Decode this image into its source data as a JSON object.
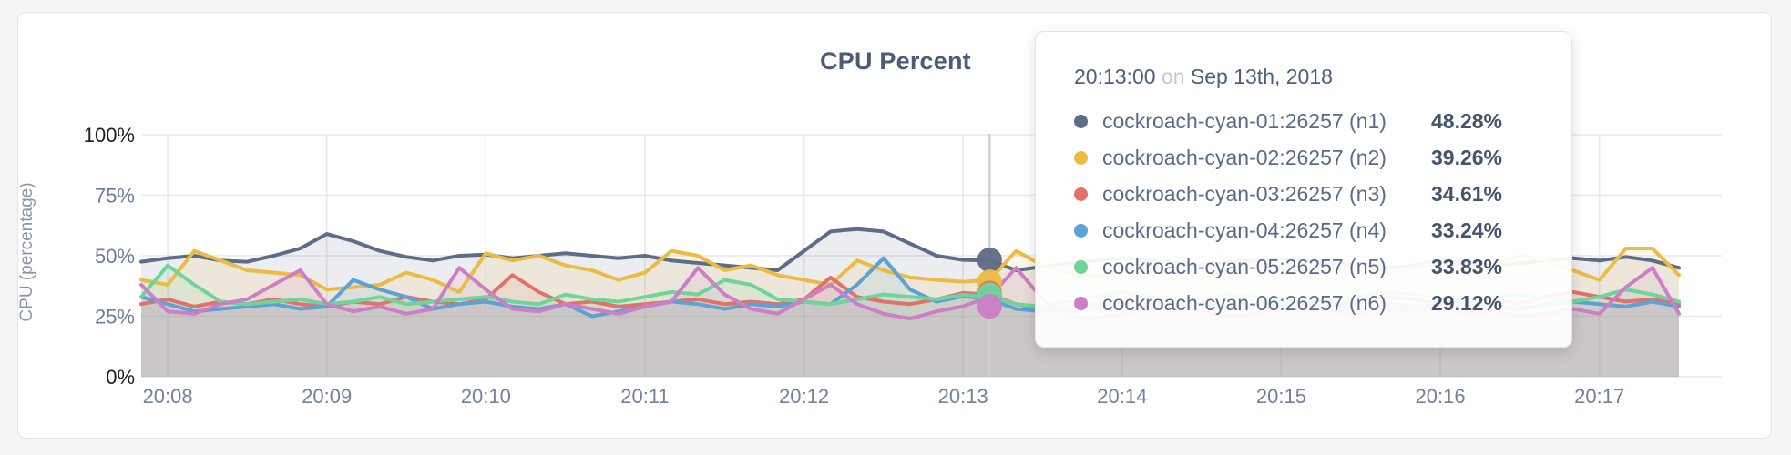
{
  "chart_data": {
    "type": "line",
    "title": "CPU Percent",
    "ylabel": "CPU (percentage)",
    "xlabel": "",
    "ylim": [
      0,
      100
    ],
    "grid": true,
    "legend_position": "none",
    "y_tick_values": [
      0,
      25,
      50,
      75,
      100
    ],
    "y_tick_labels": [
      "0%",
      "25%",
      "50%",
      "75%",
      "100%"
    ],
    "x_tick_labels": [
      "20:08",
      "20:09",
      "20:10",
      "20:11",
      "20:12",
      "20:13",
      "20:14",
      "20:15",
      "20:16",
      "20:17"
    ],
    "x_start_time": "20:07:50",
    "x_end_time": "20:17:30",
    "x_step_seconds": 10,
    "series": [
      {
        "name": "cockroach-cyan-01:26257 (n1)",
        "color": "#5f6c87",
        "values": [
          47.5,
          49,
          50,
          48,
          47.5,
          50,
          53,
          59,
          56,
          52,
          49.5,
          48,
          50,
          50.5,
          49,
          50,
          51,
          50,
          49,
          50,
          48,
          47,
          46,
          45,
          44,
          52,
          60,
          61,
          60,
          55,
          50,
          48.28,
          48,
          44,
          45.5,
          47,
          48,
          49,
          48,
          47,
          46,
          47.5,
          48,
          49,
          48,
          47,
          46,
          45,
          46,
          48,
          47,
          46,
          47,
          48,
          49,
          48,
          49.5,
          48,
          45
        ]
      },
      {
        "name": "cockroach-cyan-02:26257 (n2)",
        "color": "#ecbb44",
        "values": [
          40,
          38,
          52,
          48,
          44,
          43,
          42,
          36,
          37,
          38,
          43,
          40,
          35,
          51,
          48,
          50,
          46,
          44,
          40,
          43,
          52,
          50,
          44,
          46,
          42,
          40,
          38,
          48,
          44,
          41,
          40,
          39.26,
          40,
          52,
          46,
          43,
          41,
          44,
          46,
          43,
          41,
          44,
          47,
          45,
          42,
          44,
          46,
          43,
          45,
          47,
          44,
          46,
          50,
          48,
          44,
          40,
          53,
          53,
          42
        ]
      },
      {
        "name": "cockroach-cyan-03:26257 (n3)",
        "color": "#e0716b",
        "values": [
          30,
          32,
          29,
          31,
          30,
          32,
          30,
          29,
          31,
          30,
          33,
          31,
          30,
          32,
          42,
          35,
          30,
          31,
          29,
          30,
          31,
          32,
          30,
          31,
          30,
          32,
          41,
          33,
          31,
          30,
          32,
          34.61,
          34,
          30,
          28,
          27,
          29,
          31,
          30,
          32,
          31,
          30,
          29,
          31,
          32,
          30,
          31,
          33,
          32,
          30,
          31,
          32,
          30,
          33,
          35,
          33,
          31,
          32,
          30
        ]
      },
      {
        "name": "cockroach-cyan-04:26257 (n4)",
        "color": "#5da2d5",
        "values": [
          33,
          30,
          27,
          28,
          29,
          30,
          28,
          29,
          40,
          36,
          33,
          28,
          30,
          31,
          29,
          28,
          30,
          25,
          27,
          29,
          31,
          30,
          28,
          30,
          29,
          31,
          30,
          38,
          49,
          36,
          31,
          33.24,
          32,
          28,
          27,
          29,
          30,
          28,
          29,
          31,
          30,
          28,
          29,
          30,
          31,
          29,
          28,
          30,
          29,
          31,
          30,
          29,
          28,
          30,
          31,
          30,
          29,
          31,
          29
        ]
      },
      {
        "name": "cockroach-cyan-05:26257 (n5)",
        "color": "#6fd49a",
        "values": [
          33,
          46,
          38,
          31,
          30,
          31,
          32,
          30,
          31,
          33,
          30,
          31,
          32,
          33,
          31,
          30,
          34,
          32,
          31,
          33,
          35,
          34,
          40,
          38,
          32,
          31,
          30,
          32,
          34,
          33,
          32,
          33.83,
          33,
          30,
          29,
          31,
          33,
          35,
          33,
          31,
          32,
          34,
          33,
          31,
          30,
          32,
          33,
          35,
          34,
          32,
          31,
          33,
          34,
          32,
          31,
          33,
          36,
          34,
          31
        ]
      },
      {
        "name": "cockroach-cyan-06:26257 (n6)",
        "color": "#cd7ec6",
        "values": [
          38,
          27,
          26,
          30,
          32,
          38,
          44,
          30,
          27,
          29,
          26,
          28,
          45,
          36,
          28,
          27,
          30,
          28,
          26,
          29,
          31,
          45,
          34,
          28,
          26,
          32,
          38,
          30,
          26,
          24,
          27,
          29.12,
          33,
          45,
          32,
          25,
          24,
          26,
          28,
          30,
          27,
          25,
          26,
          28,
          30,
          27,
          26,
          28,
          27,
          29,
          26,
          27,
          25,
          26,
          28,
          26,
          37,
          45,
          26
        ]
      }
    ],
    "hover": {
      "time": "20:13:00",
      "values": [
        48.28,
        39.26,
        34.61,
        33.24,
        33.83,
        29.12
      ]
    }
  },
  "tooltip": {
    "time": "20:13:00",
    "on_word": "on",
    "date": "Sep 13th, 2018",
    "rows": [
      {
        "label": "cockroach-cyan-01:26257 (n1)",
        "value": "48.28%",
        "color": "#5f6c87"
      },
      {
        "label": "cockroach-cyan-02:26257 (n2)",
        "value": "39.26%",
        "color": "#ecbb44"
      },
      {
        "label": "cockroach-cyan-03:26257 (n3)",
        "value": "34.61%",
        "color": "#e0716b"
      },
      {
        "label": "cockroach-cyan-04:26257 (n4)",
        "value": "33.24%",
        "color": "#5da2d5"
      },
      {
        "label": "cockroach-cyan-05:26257 (n5)",
        "value": "33.83%",
        "color": "#6fd49a"
      },
      {
        "label": "cockroach-cyan-06:26257 (n6)",
        "value": "29.12%",
        "color": "#cd7ec6"
      }
    ]
  },
  "colors": {
    "page_background": "#f5f5f6",
    "card_background": "#ffffff",
    "card_border": "#e5e5e7",
    "title_text": "#4c5b77",
    "axis_text_mid": "#6e7d96",
    "axis_text_extreme": "#1b1e25",
    "x_axis_text": "#75819b",
    "gridline": "#e8e8e8",
    "crosshair": "#cfcfcf"
  }
}
